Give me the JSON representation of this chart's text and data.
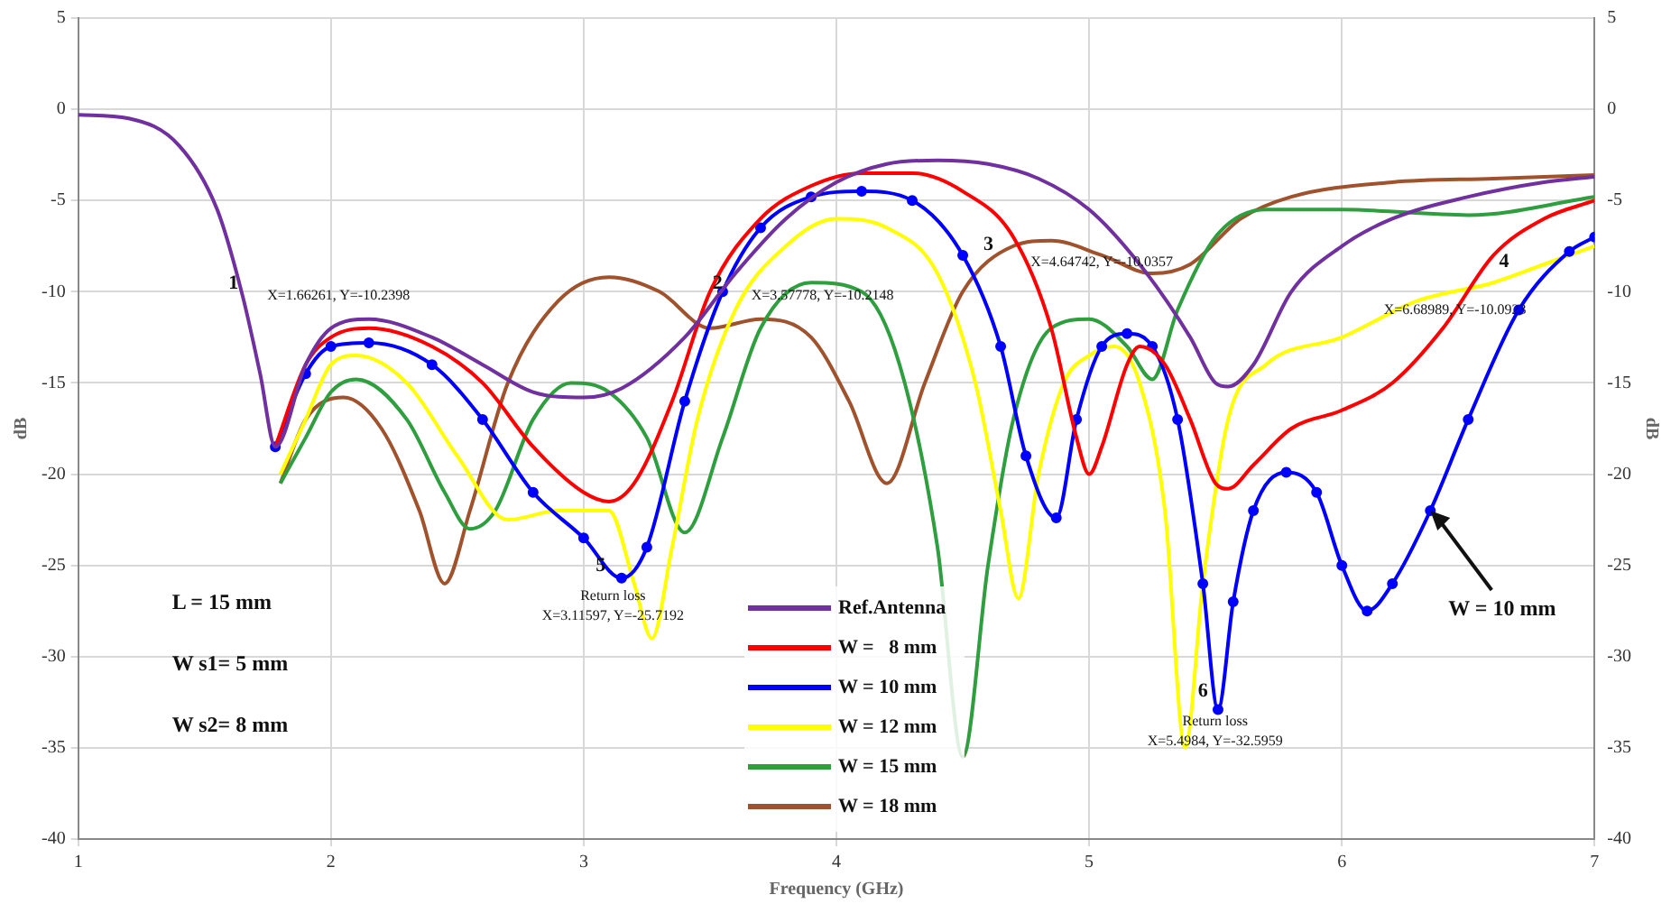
{
  "chart_data": {
    "type": "line",
    "xlabel": "Frequency (GHz)",
    "ylabel": "dB",
    "y2label": "dB",
    "xlim": [
      1,
      7
    ],
    "xticks": [
      1,
      2,
      3,
      4,
      5,
      6,
      7
    ],
    "ylim": [
      -40,
      5
    ],
    "yticks": [
      -40,
      -35,
      -30,
      -25,
      -20,
      -15,
      -10,
      -5,
      0,
      5
    ],
    "y2lim": [
      -40,
      5
    ],
    "y2ticks": [
      -40,
      -35,
      -30,
      -25,
      -20,
      -15,
      -10,
      -5,
      0,
      5
    ],
    "grid": true,
    "legend": "bottom",
    "marker": "none",
    "series": [
      {
        "name": "Ref.Antenna",
        "color": "#7030a0",
        "x": [
          1,
          1.2,
          1.4,
          1.55,
          1.65,
          1.72,
          1.78,
          1.9,
          2.0,
          2.15,
          2.4,
          2.6,
          2.8,
          3.0,
          3.15,
          3.4,
          3.6,
          3.8,
          4.0,
          4.2,
          4.4,
          4.6,
          4.8,
          5.0,
          5.2,
          5.4,
          5.5,
          5.55,
          5.65,
          5.8,
          6.0,
          6.2,
          6.5,
          6.8,
          7
        ],
        "values": [
          -0.3,
          -0.5,
          -2,
          -5.5,
          -10.2,
          -14.5,
          -18.5,
          -14,
          -12,
          -11.5,
          -12.5,
          -14,
          -15.5,
          -15.8,
          -15.3,
          -12.5,
          -9,
          -6,
          -4,
          -3,
          -2.8,
          -3,
          -3.8,
          -5.5,
          -8.5,
          -12.5,
          -15,
          -15.2,
          -14,
          -10,
          -7.5,
          -6,
          -4.8,
          -4,
          -3.7
        ]
      },
      {
        "name": "W =   8 mm",
        "color": "#ff0000",
        "x": [
          1.78,
          1.9,
          2.0,
          2.15,
          2.4,
          2.6,
          2.8,
          3.0,
          3.1,
          3.2,
          3.35,
          3.5,
          3.7,
          3.9,
          4.1,
          4.3,
          4.5,
          4.7,
          4.85,
          4.95,
          5.0,
          5.05,
          5.15,
          5.2,
          5.3,
          5.4,
          5.5,
          5.55,
          5.65,
          5.8,
          6.0,
          6.2,
          6.4,
          6.6,
          6.8,
          7
        ],
        "values": [
          -18.5,
          -14,
          -12.5,
          -12,
          -13,
          -15,
          -18.5,
          -21,
          -21.5,
          -20.5,
          -16,
          -10,
          -6,
          -4.2,
          -3.5,
          -3.5,
          -4.5,
          -7,
          -12,
          -18,
          -20,
          -18.5,
          -14,
          -13,
          -14,
          -17,
          -20.5,
          -20.8,
          -19.5,
          -17.5,
          -16.5,
          -15,
          -12,
          -8,
          -6,
          -5
        ]
      },
      {
        "name": "W = 10 mm",
        "color": "#0000ff",
        "marker": "circle",
        "x": [
          1.78,
          1.9,
          2.0,
          2.15,
          2.4,
          2.6,
          2.8,
          3.0,
          3.15,
          3.25,
          3.4,
          3.55,
          3.7,
          3.9,
          4.1,
          4.3,
          4.5,
          4.65,
          4.75,
          4.87,
          4.95,
          5.05,
          5.15,
          5.25,
          5.35,
          5.45,
          5.51,
          5.57,
          5.65,
          5.78,
          5.9,
          6.0,
          6.1,
          6.2,
          6.35,
          6.5,
          6.7,
          6.9,
          7
        ],
        "values": [
          -18.5,
          -14.5,
          -13,
          -12.8,
          -14,
          -17,
          -21,
          -23.5,
          -25.7,
          -24,
          -16,
          -10,
          -6.5,
          -4.8,
          -4.5,
          -5,
          -8,
          -13,
          -19,
          -22.4,
          -17,
          -13,
          -12.3,
          -13,
          -17,
          -26,
          -32.9,
          -27,
          -22,
          -19.9,
          -21,
          -25,
          -27.5,
          -26,
          -22,
          -17,
          -11,
          -7.8,
          -7
        ]
      },
      {
        "name": "W = 12 mm",
        "color": "#ffff00",
        "x": [
          1.8,
          1.9,
          2.0,
          2.1,
          2.3,
          2.5,
          2.7,
          2.9,
          3.1,
          3.2,
          3.27,
          3.35,
          3.45,
          3.6,
          3.8,
          4.0,
          4.2,
          4.4,
          4.55,
          4.65,
          4.72,
          4.8,
          4.9,
          5.0,
          5.1,
          5.2,
          5.3,
          5.38,
          5.45,
          5.55,
          5.7,
          6.0,
          6.3,
          6.6,
          6.8,
          7
        ],
        "values": [
          -20,
          -17,
          -14,
          -13.5,
          -15,
          -19,
          -22.5,
          -22,
          -22,
          -26,
          -29,
          -24,
          -17,
          -11,
          -7.5,
          -6,
          -6.5,
          -9,
          -15,
          -22,
          -26.8,
          -20,
          -15,
          -13.5,
          -13,
          -15,
          -22,
          -35,
          -26,
          -17,
          -14,
          -12.5,
          -10.5,
          -9.5,
          -8.5,
          -7.5
        ]
      },
      {
        "name": "W = 15 mm",
        "color": "#2e9e3e",
        "x": [
          1.8,
          1.9,
          2.0,
          2.1,
          2.3,
          2.45,
          2.55,
          2.65,
          2.8,
          2.95,
          3.1,
          3.25,
          3.4,
          3.55,
          3.7,
          3.9,
          4.1,
          4.25,
          4.4,
          4.5,
          4.6,
          4.7,
          4.85,
          5.0,
          5.15,
          5.25,
          5.35,
          5.5,
          5.7,
          6.0,
          6.5,
          7
        ],
        "values": [
          -20.5,
          -18,
          -15.5,
          -14.8,
          -17,
          -21,
          -23,
          -22,
          -17,
          -15,
          -15.5,
          -18,
          -23.2,
          -18,
          -12,
          -9.5,
          -10,
          -14,
          -24,
          -35.5,
          -25,
          -17,
          -12,
          -11.5,
          -13,
          -14.8,
          -11,
          -7,
          -5.5,
          -5.5,
          -5.8,
          -4.8
        ]
      },
      {
        "name": "W = 18 mm",
        "color": "#a0522d",
        "x": [
          1.8,
          1.9,
          2.05,
          2.2,
          2.35,
          2.45,
          2.55,
          2.7,
          2.9,
          3.1,
          3.3,
          3.5,
          3.7,
          3.9,
          4.05,
          4.2,
          4.35,
          4.5,
          4.7,
          4.85,
          5.05,
          5.25,
          5.4,
          5.6,
          5.8,
          6.2,
          6.6,
          7
        ],
        "values": [
          -20.5,
          -17,
          -15.8,
          -17.5,
          -22,
          -26,
          -22,
          -15,
          -10.5,
          -9.2,
          -10,
          -12,
          -11.5,
          -12.5,
          -16,
          -20.5,
          -15,
          -10,
          -7.5,
          -7.2,
          -8,
          -9,
          -8.5,
          -6,
          -4.8,
          -4,
          -3.8,
          -3.6
        ]
      }
    ],
    "annotations": [
      {
        "text": "1",
        "x": 1.66261,
        "y": -10.2398
      },
      {
        "text": "X=1.66261, Y=-10.2398",
        "x": 1.66261,
        "y": -10.2398
      },
      {
        "text": "2",
        "x": 3.57778,
        "y": -10.2148
      },
      {
        "text": "X=3.57778, Y=-10.2148",
        "x": 3.57778,
        "y": -10.2148
      },
      {
        "text": "3",
        "x": 4.65,
        "y": -8.1
      },
      {
        "text": "4",
        "x": 6.69,
        "y": -9.05
      },
      {
        "text": "5",
        "x": 3.11597,
        "y": -25.7192
      },
      {
        "text": "Return loss",
        "x": 3.11597,
        "y": -25.7192
      },
      {
        "text": "X=3.11597, Y=-25.7192",
        "x": 3.11597,
        "y": -25.7192
      },
      {
        "text": "6",
        "x": 5.4984,
        "y": -32.5959
      },
      {
        "text": "Return loss",
        "x": 5.4984,
        "y": -32.5959
      },
      {
        "text": "X=5.4984, Y=-32.5959",
        "x": 5.4984,
        "y": -32.5959
      },
      {
        "text": "W = 10 mm",
        "x": 6.35,
        "y": -22
      },
      "X=4.64742, Y=-10.0357",
      "X=6.68989, Y=-10.0923",
      "L = 15 mm",
      "W s1= 5 mm",
      "W s2= 8 mm"
    ]
  }
}
